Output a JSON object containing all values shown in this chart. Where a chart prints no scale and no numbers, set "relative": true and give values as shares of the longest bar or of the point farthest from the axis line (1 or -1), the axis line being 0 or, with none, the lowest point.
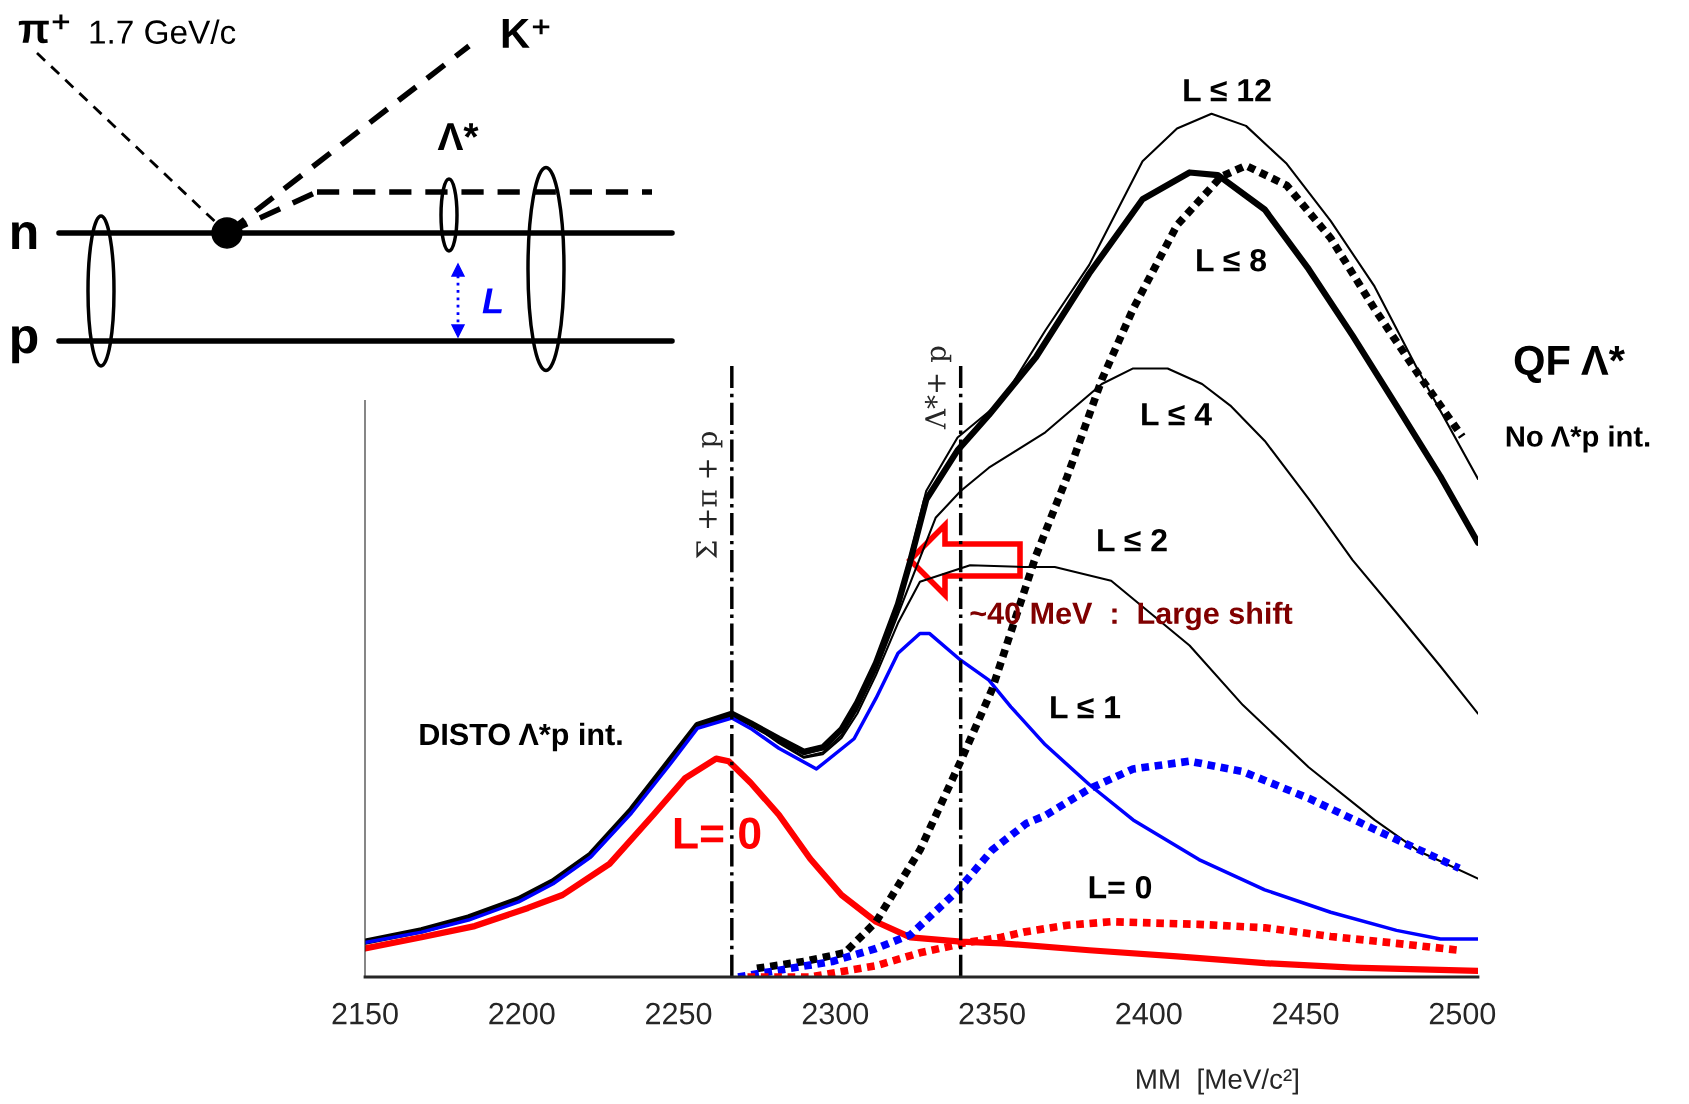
{
  "chart_data": {
    "type": "line",
    "relative": true,
    "xlabel": "MM  [MeV/c²]",
    "xlim": [
      2150,
      2505
    ],
    "xticks": [
      2150,
      2200,
      2250,
      2300,
      2350,
      2400,
      2450,
      2500
    ],
    "grid": false,
    "legend": false,
    "series": [
      {
        "color": "#000000",
        "line_style": "solid",
        "x": [
          2150,
          2168,
          2183,
          2199,
          2210,
          2222,
          2235,
          2247,
          2256,
          2267,
          2273,
          2282,
          2290,
          2296,
          2302,
          2307,
          2313,
          2320,
          2324,
          2329,
          2339,
          2353,
          2367,
          2381,
          2398,
          2409,
          2420,
          2431,
          2444,
          2458,
          2472,
          2486,
          2505
        ],
        "values": [
          0.041,
          0.054,
          0.069,
          0.09,
          0.111,
          0.142,
          0.194,
          0.25,
          0.292,
          0.305,
          0.294,
          0.274,
          0.258,
          0.264,
          0.285,
          0.318,
          0.366,
          0.436,
          0.49,
          0.563,
          0.625,
          0.667,
          0.749,
          0.825,
          0.945,
          0.983,
          1.0,
          0.986,
          0.942,
          0.876,
          0.8,
          0.702,
          0.577
        ]
      },
      {
        "color": "#000000",
        "line_style": "solid",
        "x": [
          2150,
          2168,
          2183,
          2199,
          2210,
          2222,
          2235,
          2247,
          2256,
          2267,
          2273,
          2282,
          2290,
          2296,
          2302,
          2307,
          2313,
          2320,
          2324,
          2329,
          2339,
          2349,
          2364,
          2381,
          2398,
          2413,
          2422,
          2437,
          2451,
          2465,
          2479,
          2493,
          2505
        ],
        "values": [
          0.041,
          0.054,
          0.069,
          0.09,
          0.111,
          0.142,
          0.194,
          0.25,
          0.292,
          0.305,
          0.294,
          0.276,
          0.261,
          0.266,
          0.287,
          0.318,
          0.364,
          0.432,
          0.483,
          0.553,
          0.61,
          0.651,
          0.718,
          0.815,
          0.901,
          0.932,
          0.929,
          0.889,
          0.82,
          0.743,
          0.662,
          0.58,
          0.503
        ]
      },
      {
        "color": "#000000",
        "line_style": "solid",
        "x": [
          2150,
          2168,
          2183,
          2199,
          2210,
          2222,
          2235,
          2247,
          2256,
          2267,
          2273,
          2282,
          2290,
          2296,
          2302,
          2307,
          2313,
          2320,
          2332,
          2340,
          2349,
          2367,
          2385,
          2395,
          2406,
          2417,
          2426,
          2437,
          2451,
          2465,
          2479,
          2493,
          2505
        ],
        "values": [
          0.041,
          0.054,
          0.069,
          0.09,
          0.111,
          0.142,
          0.194,
          0.25,
          0.292,
          0.305,
          0.294,
          0.272,
          0.255,
          0.26,
          0.28,
          0.31,
          0.355,
          0.42,
          0.532,
          0.563,
          0.59,
          0.631,
          0.687,
          0.705,
          0.705,
          0.687,
          0.662,
          0.621,
          0.554,
          0.483,
          0.422,
          0.36,
          0.305
        ]
      },
      {
        "color": "#000000",
        "line_style": "solid",
        "x": [
          2150,
          2168,
          2183,
          2199,
          2210,
          2222,
          2235,
          2247,
          2256,
          2267,
          2273,
          2282,
          2290,
          2296,
          2302,
          2307,
          2313,
          2320,
          2327,
          2343,
          2360,
          2370,
          2388,
          2413,
          2430,
          2451,
          2472,
          2486,
          2505
        ],
        "values": [
          0.041,
          0.054,
          0.069,
          0.09,
          0.111,
          0.142,
          0.194,
          0.25,
          0.292,
          0.305,
          0.294,
          0.271,
          0.254,
          0.258,
          0.277,
          0.305,
          0.35,
          0.41,
          0.458,
          0.477,
          0.475,
          0.475,
          0.459,
          0.384,
          0.315,
          0.243,
          0.182,
          0.146,
          0.114
        ]
      },
      {
        "color": "#0000ff",
        "line_style": "solid",
        "x": [
          2150,
          2168,
          2183,
          2199,
          2210,
          2222,
          2235,
          2247,
          2256,
          2267,
          2273,
          2282,
          2294,
          2306,
          2313,
          2320,
          2327,
          2330,
          2340,
          2349,
          2356,
          2367,
          2381,
          2395,
          2416,
          2437,
          2458,
          2479,
          2493,
          2505
        ],
        "values": [
          0.04,
          0.052,
          0.066,
          0.087,
          0.108,
          0.139,
          0.19,
          0.245,
          0.288,
          0.3,
          0.288,
          0.265,
          0.241,
          0.276,
          0.323,
          0.375,
          0.398,
          0.398,
          0.367,
          0.344,
          0.313,
          0.269,
          0.223,
          0.182,
          0.136,
          0.101,
          0.075,
          0.054,
          0.044,
          0.044
        ]
      },
      {
        "color": "#ff0000",
        "line_style": "solid",
        "x": [
          2150,
          2168,
          2185,
          2202,
          2213,
          2228,
          2242,
          2252,
          2262,
          2266,
          2273,
          2282,
          2292,
          2302,
          2313,
          2324,
          2340,
          2353,
          2381,
          2409,
          2437,
          2465,
          2505
        ],
        "values": [
          0.033,
          0.046,
          0.059,
          0.08,
          0.095,
          0.131,
          0.188,
          0.23,
          0.253,
          0.25,
          0.225,
          0.188,
          0.137,
          0.095,
          0.064,
          0.046,
          0.041,
          0.039,
          0.031,
          0.024,
          0.016,
          0.011,
          0.007
        ]
      },
      {
        "color": "#000000",
        "line_style": "dotted",
        "x": [
          2275,
          2290,
          2303,
          2313,
          2327,
          2340,
          2350,
          2364,
          2374,
          2385,
          2395,
          2409,
          2423,
          2431,
          2444,
          2458,
          2472,
          2486,
          2500
        ],
        "values": [
          0.01,
          0.018,
          0.028,
          0.064,
          0.147,
          0.25,
          0.333,
          0.488,
          0.58,
          0.692,
          0.774,
          0.871,
          0.927,
          0.94,
          0.917,
          0.856,
          0.774,
          0.698,
          0.626
        ]
      },
      {
        "color": "#0000ff",
        "line_style": "dotted",
        "x": [
          2269,
          2299,
          2313,
          2324,
          2339,
          2350,
          2361,
          2367,
          2381,
          2395,
          2413,
          2430,
          2451,
          2472,
          2499
        ],
        "values": [
          0.0,
          0.018,
          0.033,
          0.049,
          0.1,
          0.147,
          0.178,
          0.187,
          0.218,
          0.241,
          0.25,
          0.238,
          0.207,
          0.171,
          0.126
        ]
      },
      {
        "color": "#ff0000",
        "line_style": "dotted",
        "x": [
          2272,
          2292,
          2313,
          2327,
          2342,
          2353,
          2360,
          2374,
          2388,
          2416,
          2437,
          2458,
          2479,
          2499
        ],
        "values": [
          0.0,
          0.0,
          0.013,
          0.028,
          0.04,
          0.046,
          0.052,
          0.06,
          0.064,
          0.061,
          0.057,
          0.047,
          0.039,
          0.031
        ]
      }
    ],
    "ref_lines": [
      {
        "axis": "x",
        "value": 2267,
        "label": "Σ +π + p",
        "line_style": "dashed",
        "color": "#000000"
      },
      {
        "axis": "x",
        "value": 2340,
        "label": "Λ*+ p",
        "line_style": "dashed",
        "color": "#000000"
      }
    ],
    "annotations": [
      "π⁺",
      "1.7 GeV/c",
      "K⁺",
      "Λ*",
      "n",
      "p",
      "L",
      "L ≤ 12",
      "L ≤ 8",
      "L ≤ 4",
      "L ≤ 2",
      "L ≤ 1",
      "L= 0",
      "L= 0",
      "DISTO Λ*p int.",
      "QF Λ*",
      "No Λ*p int.",
      "~40 MeV  :  Large shift"
    ]
  }
}
